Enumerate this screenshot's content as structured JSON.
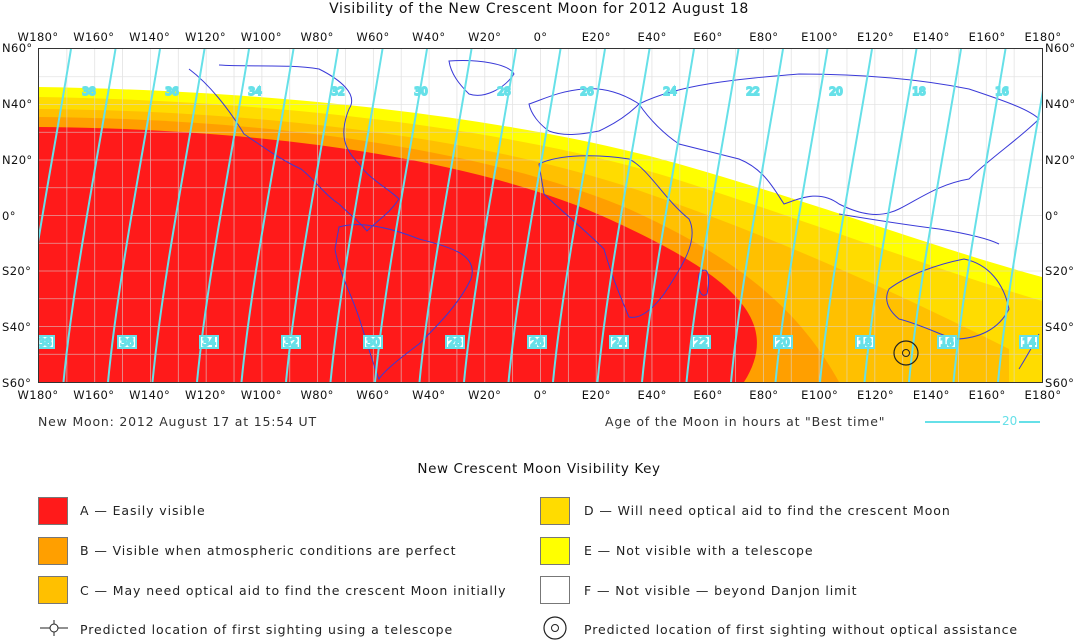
{
  "title": "Visibility of the New Crescent Moon for 2012 August 18",
  "lon_labels": [
    "W180°",
    "W160°",
    "W140°",
    "W120°",
    "W100°",
    "W80°",
    "W60°",
    "W40°",
    "W20°",
    "0°",
    "E20°",
    "E40°",
    "E60°",
    "E80°",
    "E100°",
    "E120°",
    "E140°",
    "E160°",
    "E180°"
  ],
  "lat_labels": [
    "N60°",
    "N40°",
    "N20°",
    "0°",
    "S20°",
    "S40°",
    "S60°"
  ],
  "new_moon": "New Moon: 2012 August 17 at 15:54 UT",
  "age_caption": "Age of the Moon in hours at \"Best time\"",
  "age_legend_value": "20",
  "contour_top_labels": [
    "38",
    "36",
    "34",
    "32",
    "30",
    "28",
    "26",
    "24",
    "22",
    "20",
    "18",
    "16"
  ],
  "contour_bottom_labels": [
    "38",
    "36",
    "34",
    "32",
    "30",
    "28",
    "26",
    "24",
    "22",
    "20",
    "18",
    "16",
    "14"
  ],
  "key": {
    "title": "New Crescent Moon Visibility Key",
    "items": [
      {
        "label": "A — Easily visible",
        "color": "#ff1a1a"
      },
      {
        "label": "B — Visible when atmospheric conditions are perfect",
        "color": "#ff9f00"
      },
      {
        "label": "C — May need optical aid to find the crescent Moon initially",
        "color": "#ffc000"
      },
      {
        "label": "D — Will need optical aid to find the crescent Moon",
        "color": "#ffdc00"
      },
      {
        "label": "E — Not visible with a telescope",
        "color": "#ffff00"
      },
      {
        "label": "F — Not visible — beyond Danjon limit",
        "color": "#ffffff"
      }
    ],
    "telescope_symbol_label": "Predicted location of first sighting using a telescope",
    "naked_eye_symbol_label": "Predicted location of first sighting without optical assistance"
  },
  "colors": {
    "contour": "#66e0e8",
    "coast": "#3a3ad8",
    "grid": "#d8d8d8"
  }
}
